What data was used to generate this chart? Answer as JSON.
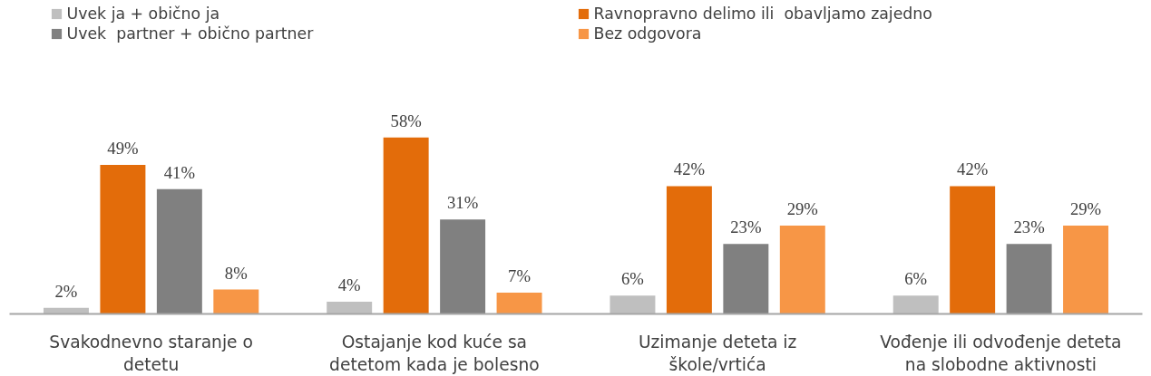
{
  "chart_data": {
    "type": "bar",
    "categories": [
      "Svakodnevno staranje o detetu",
      "Ostajanje kod kuće sa detetom kada je bolesno",
      "Uzimanje deteta iz škole/vrtića",
      "Vođenje ili odvođenje deteta na slobodne aktivnosti"
    ],
    "series": [
      {
        "name": "Uvek ja + obično ja",
        "color": "#bfbfbf",
        "values": [
          2,
          4,
          6,
          6
        ],
        "value_labels": [
          "2%",
          "4%",
          "6%",
          "6%"
        ]
      },
      {
        "name": "Ravnopravno delimo ili  obavljamo zajedno",
        "color": "#e36c0a",
        "values": [
          49,
          58,
          42,
          42
        ],
        "value_labels": [
          "49%",
          "58%",
          "42%",
          "42%"
        ]
      },
      {
        "name": "Uvek  partner + obično partner",
        "color": "#808080",
        "values": [
          41,
          31,
          23,
          23
        ],
        "value_labels": [
          "41%",
          "31%",
          "23%",
          "23%"
        ]
      },
      {
        "name": "Bez odgovora",
        "color": "#f79646",
        "values": [
          8,
          7,
          29,
          29
        ],
        "value_labels": [
          "8%",
          "7%",
          "29%",
          "29%"
        ]
      }
    ],
    "legend": "top"
  }
}
